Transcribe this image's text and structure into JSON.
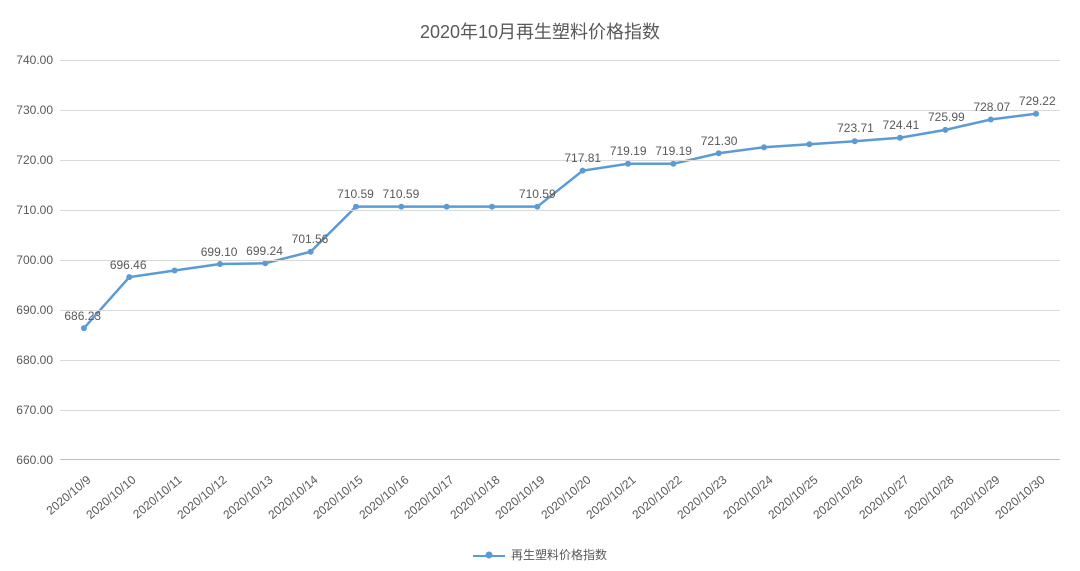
{
  "chart": {
    "type": "line",
    "title": "2020年10月再生塑料价格指数",
    "title_fontsize": 18,
    "title_color": "#595959",
    "background_color": "#ffffff",
    "grid_color": "#d9d9d9",
    "axis_color": "#bfbfbf",
    "label_color": "#595959",
    "label_fontsize": 12,
    "line_color": "#5b9bd5",
    "marker_color": "#5b9bd5",
    "line_width": 2.5,
    "marker_size": 6,
    "ylim": [
      660,
      740
    ],
    "ytick_step": 10,
    "yticks": [
      660,
      670,
      680,
      690,
      700,
      710,
      720,
      730,
      740
    ],
    "ylabels": [
      "660.00",
      "670.00",
      "680.00",
      "690.00",
      "700.00",
      "710.00",
      "720.00",
      "730.00",
      "740.00"
    ],
    "categories": [
      "2020/10/9",
      "2020/10/10",
      "2020/10/11",
      "2020/10/12",
      "2020/10/13",
      "2020/10/14",
      "2020/10/15",
      "2020/10/16",
      "2020/10/17",
      "2020/10/18",
      "2020/10/19",
      "2020/10/20",
      "2020/10/21",
      "2020/10/22",
      "2020/10/23",
      "2020/10/24",
      "2020/10/25",
      "2020/10/26",
      "2020/10/27",
      "2020/10/28",
      "2020/10/29",
      "2020/10/30"
    ],
    "values": [
      686.23,
      696.46,
      697.8,
      699.1,
      699.24,
      701.56,
      710.59,
      710.59,
      710.59,
      710.59,
      710.59,
      717.81,
      719.19,
      719.19,
      721.3,
      722.5,
      723.1,
      723.71,
      724.41,
      725.99,
      728.07,
      729.22
    ],
    "show_label": [
      true,
      true,
      false,
      true,
      true,
      true,
      true,
      true,
      false,
      false,
      true,
      true,
      true,
      true,
      true,
      false,
      false,
      true,
      true,
      true,
      true,
      true
    ],
    "value_labels": [
      "686.23",
      "696.46",
      "",
      "699.10",
      "699.24",
      "701.56",
      "710.59",
      "710.59",
      "",
      "",
      "710.59",
      "717.81",
      "719.19",
      "719.19",
      "721.30",
      "",
      "",
      "723.71",
      "724.41",
      "725.99",
      "728.07",
      "729.22"
    ],
    "legend_label": "再生塑料价格指数"
  }
}
